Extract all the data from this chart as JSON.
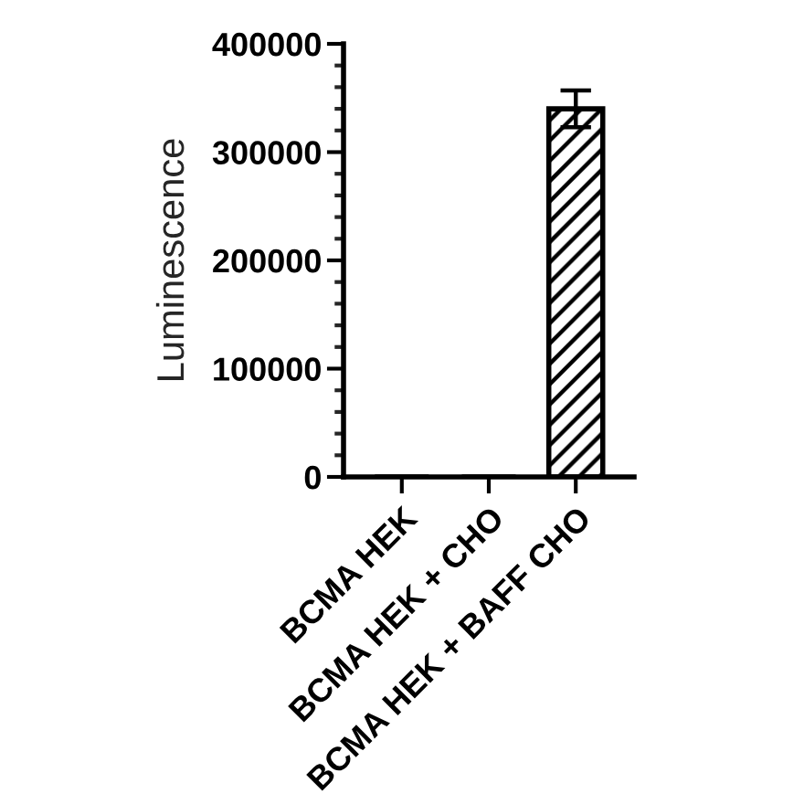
{
  "chart_data": {
    "type": "bar",
    "ylabel": "Luminescence",
    "categories": [
      "BCMA HEK",
      "BCMA HEK + CHO",
      "BCMA HEK + BAFF CHO"
    ],
    "values": [
      0,
      0,
      340000
    ],
    "errors": [
      null,
      null,
      17000
    ],
    "color": "#000000",
    "ylim": [
      0,
      400000
    ],
    "yticks": [
      0,
      {
        "value": 20000,
        "label": null
      },
      {
        "value": 40000,
        "label": null
      },
      {
        "value": 60000,
        "label": null
      },
      {
        "value": 80000,
        "label": null
      },
      100000,
      {
        "value": 120000,
        "label": null
      },
      {
        "value": 140000,
        "label": null
      },
      {
        "value": 160000,
        "label": null
      },
      {
        "value": 180000,
        "label": null
      },
      200000,
      {
        "value": 220000,
        "label": null
      },
      {
        "value": 240000,
        "label": null
      },
      {
        "value": 260000,
        "label": null
      },
      {
        "value": 280000,
        "label": null
      },
      300000,
      {
        "value": 320000,
        "label": null
      },
      {
        "value": 340000,
        "label": null
      },
      {
        "value": 360000,
        "label": null
      },
      {
        "value": 380000,
        "label": null
      },
      400000
    ]
  }
}
